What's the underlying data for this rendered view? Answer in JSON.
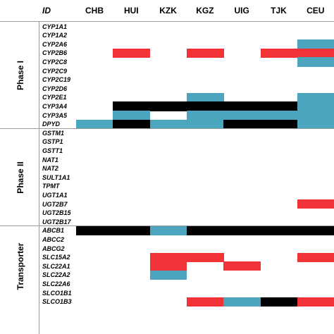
{
  "header": {
    "id_label": "ID",
    "columns": [
      "CHB",
      "HUI",
      "KZK",
      "KGZ",
      "UIG",
      "TJK",
      "CEU"
    ]
  },
  "legend_colors": {
    "R": "#ef3337",
    "B": "#4ba6bd",
    "K": "#000000"
  },
  "groups": [
    {
      "label": "Phase I",
      "rows": [
        {
          "gene": "CYP1A1",
          "cells": [
            "",
            "",
            "",
            "",
            "",
            "",
            ""
          ]
        },
        {
          "gene": "CYP1A2",
          "cells": [
            "",
            "",
            "",
            "",
            "",
            "",
            ""
          ]
        },
        {
          "gene": "CYP2A6",
          "cells": [
            "",
            "",
            "",
            "",
            "",
            "",
            "B"
          ]
        },
        {
          "gene": "CYP2B6",
          "cells": [
            "",
            "R",
            "",
            "R",
            "",
            "R",
            "R"
          ]
        },
        {
          "gene": "CYP2C8",
          "cells": [
            "",
            "",
            "",
            "",
            "",
            "",
            "B"
          ]
        },
        {
          "gene": "CYP2C9",
          "cells": [
            "",
            "",
            "",
            "",
            "",
            "",
            ""
          ]
        },
        {
          "gene": "CYP2C19",
          "cells": [
            "",
            "",
            "",
            "",
            "",
            "",
            ""
          ]
        },
        {
          "gene": "CYP2D6",
          "cells": [
            "",
            "",
            "",
            "",
            "",
            "",
            ""
          ]
        },
        {
          "gene": "CYP2E1",
          "cells": [
            "",
            "",
            "",
            "B",
            "",
            "",
            "B"
          ]
        },
        {
          "gene": "CYP3A4",
          "cells": [
            "",
            "K",
            "K",
            "K",
            "K",
            "K",
            "B"
          ]
        },
        {
          "gene": "CYP3A5",
          "cells": [
            "",
            "B",
            "",
            "B",
            "B",
            "B",
            "B"
          ]
        },
        {
          "gene": "DPYD",
          "cells": [
            "B",
            "K",
            "B",
            "B",
            "K",
            "K",
            "B"
          ]
        }
      ]
    },
    {
      "label": "Phase II",
      "rows": [
        {
          "gene": "GSTM1",
          "cells": [
            "",
            "",
            "",
            "",
            "",
            "",
            ""
          ]
        },
        {
          "gene": "GSTP1",
          "cells": [
            "",
            "",
            "",
            "",
            "",
            "",
            ""
          ]
        },
        {
          "gene": "GSTT1",
          "cells": [
            "",
            "",
            "",
            "",
            "",
            "",
            ""
          ]
        },
        {
          "gene": "NAT1",
          "cells": [
            "",
            "",
            "",
            "",
            "",
            "",
            ""
          ]
        },
        {
          "gene": "NAT2",
          "cells": [
            "",
            "",
            "",
            "",
            "",
            "",
            ""
          ]
        },
        {
          "gene": "SULT1A1",
          "cells": [
            "",
            "",
            "",
            "",
            "",
            "",
            ""
          ]
        },
        {
          "gene": "TPMT",
          "cells": [
            "",
            "",
            "",
            "",
            "",
            "",
            ""
          ]
        },
        {
          "gene": "UGT1A1",
          "cells": [
            "",
            "",
            "",
            "",
            "",
            "",
            ""
          ]
        },
        {
          "gene": "UGT2B7",
          "cells": [
            "",
            "",
            "",
            "",
            "",
            "",
            "R"
          ]
        },
        {
          "gene": "UGT2B15",
          "cells": [
            "",
            "",
            "",
            "",
            "",
            "",
            ""
          ]
        },
        {
          "gene": "UGT2B17",
          "cells": [
            "",
            "",
            "",
            "",
            "",
            "",
            ""
          ]
        }
      ]
    },
    {
      "label": "Transporter",
      "rows": [
        {
          "gene": "ABCB1",
          "cells": [
            "K",
            "K",
            "B",
            "K",
            "K",
            "K",
            "K"
          ]
        },
        {
          "gene": "ABCC2",
          "cells": [
            "",
            "",
            "",
            "",
            "",
            "",
            ""
          ]
        },
        {
          "gene": "ABCG2",
          "cells": [
            "",
            "",
            "",
            "",
            "",
            "",
            ""
          ]
        },
        {
          "gene": "SLC15A2",
          "cells": [
            "",
            "",
            "R",
            "R",
            "",
            "",
            "R"
          ]
        },
        {
          "gene": "SLC22A1",
          "cells": [
            "",
            "",
            "R",
            "",
            "R",
            "",
            ""
          ]
        },
        {
          "gene": "SLC22A2",
          "cells": [
            "",
            "",
            "B",
            "",
            "",
            "",
            ""
          ]
        },
        {
          "gene": "SLC22A6",
          "cells": [
            "",
            "",
            "",
            "",
            "",
            "",
            ""
          ]
        },
        {
          "gene": "SLCO1B1",
          "cells": [
            "",
            "",
            "",
            "",
            "",
            "",
            ""
          ]
        },
        {
          "gene": "SLCO1B3",
          "cells": [
            "",
            "",
            "",
            "R",
            "B",
            "K",
            "R"
          ]
        }
      ]
    }
  ]
}
